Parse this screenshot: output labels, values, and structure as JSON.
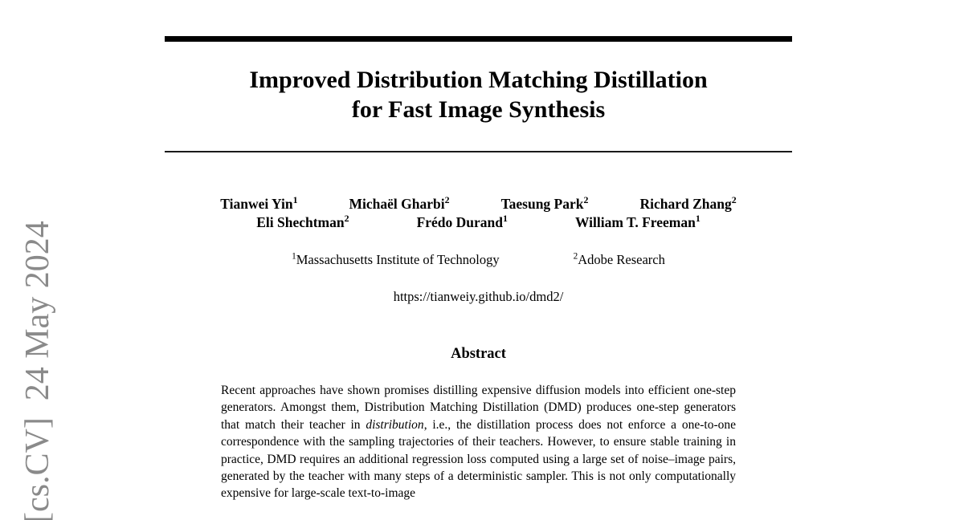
{
  "watermark": {
    "text": "[cs.CV]  24 May 2024",
    "color": "#8a8a8a"
  },
  "title": {
    "line1": "Improved Distribution Matching Distillation",
    "line2": "for Fast Image Synthesis"
  },
  "authors": {
    "row1": [
      {
        "name": "Tianwei Yin",
        "sup": "1"
      },
      {
        "name": "Michaël Gharbi",
        "sup": "2"
      },
      {
        "name": "Taesung Park",
        "sup": "2"
      },
      {
        "name": "Richard Zhang",
        "sup": "2"
      }
    ],
    "row2": [
      {
        "name": "Eli Shechtman",
        "sup": "2"
      },
      {
        "name": "Frédo Durand",
        "sup": "1"
      },
      {
        "name": "William T. Freeman",
        "sup": "1"
      }
    ]
  },
  "affiliations": [
    {
      "sup": "1",
      "name": "Massachusetts Institute of Technology"
    },
    {
      "sup": "2",
      "name": "Adobe Research"
    }
  ],
  "link": "https://tianweiy.github.io/dmd2/",
  "abstract": {
    "heading": "Abstract",
    "segments": [
      {
        "text": "Recent approaches have shown promises distilling expensive diffusion models into efficient one-step generators. Amongst them, Distribution Matching Distillation (DMD) produces one-step generators that match their teacher in "
      },
      {
        "text": "distribution",
        "style": "italic"
      },
      {
        "text": ", i.e., the distillation process does not enforce a one-to-one correspondence with the sampling trajectories of their teachers. However, to ensure stable training in practice, DMD requires an additional regression loss computed using a large set of noise–image pairs, generated by the teacher with many steps of a deterministic sampler. This is not only computationally expensive for large-scale text-to-image"
      }
    ]
  }
}
